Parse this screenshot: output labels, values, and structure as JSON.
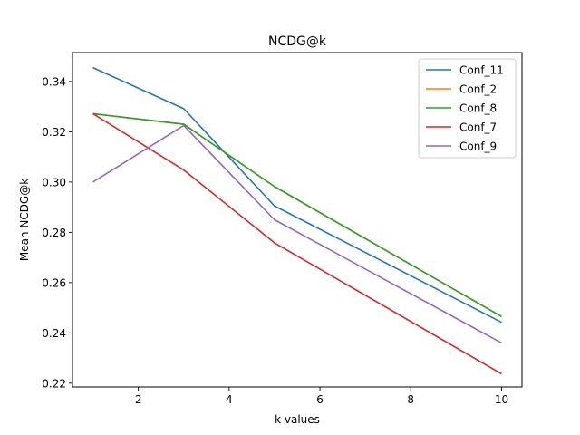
{
  "chart_data": {
    "type": "line",
    "title": "NCDG@k",
    "xlabel": "k values",
    "ylabel": "Mean NCDG@k",
    "x": [
      1,
      3,
      5,
      10
    ],
    "xlim": [
      0.55,
      10.45
    ],
    "ylim": [
      0.2185,
      0.3515
    ],
    "xticks": [
      2,
      4,
      6,
      8,
      10
    ],
    "yticks": [
      0.22,
      0.24,
      0.26,
      0.28,
      0.3,
      0.32,
      0.34
    ],
    "xtick_labels": [
      "2",
      "4",
      "6",
      "8",
      "10"
    ],
    "ytick_labels": [
      "0.22",
      "0.24",
      "0.26",
      "0.28",
      "0.30",
      "0.32",
      "0.34"
    ],
    "grid": false,
    "legend_position": "top-right",
    "series": [
      {
        "name": "Conf_11",
        "color": "#1f77b4",
        "values": [
          0.3455,
          0.3292,
          0.2905,
          0.2442
        ]
      },
      {
        "name": "Conf_2",
        "color": "#ff7f0e",
        "values": [
          0.3272,
          0.323,
          0.2982,
          0.2465
        ]
      },
      {
        "name": "Conf_8",
        "color": "#2ca02c",
        "values": [
          0.3272,
          0.323,
          0.2982,
          0.2465
        ]
      },
      {
        "name": "Conf_7",
        "color": "#d62728",
        "values": [
          0.3272,
          0.3048,
          0.2758,
          0.2237
        ]
      },
      {
        "name": "Conf_9",
        "color": "#9467bd",
        "values": [
          0.3,
          0.3225,
          0.285,
          0.236
        ]
      }
    ]
  }
}
